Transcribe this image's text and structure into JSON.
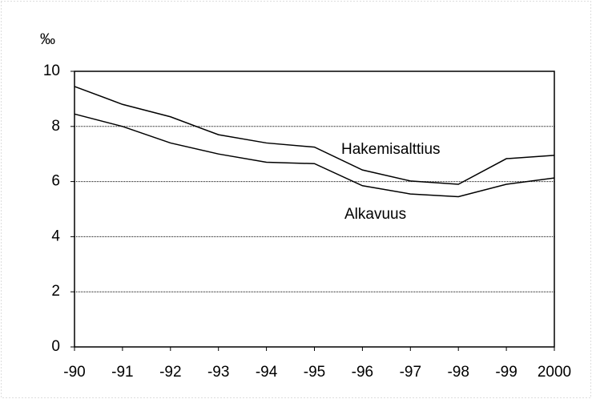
{
  "chart_data": {
    "type": "line",
    "y_label": "‰",
    "categories": [
      "-90",
      "-91",
      "-92",
      "-93",
      "-94",
      "-95",
      "-96",
      "-97",
      "-98",
      "-99",
      "2000"
    ],
    "series": [
      {
        "name": "Hakemisalttius",
        "color": "#000000",
        "values": [
          9.45,
          8.8,
          8.35,
          7.7,
          7.4,
          7.25,
          6.42,
          6.02,
          5.9,
          6.83,
          6.95
        ]
      },
      {
        "name": "Alkavuus",
        "color": "#000000",
        "values": [
          8.45,
          8.0,
          7.4,
          7.0,
          6.7,
          6.65,
          5.85,
          5.55,
          5.45,
          5.9,
          6.13
        ]
      }
    ],
    "ylim": [
      0,
      10
    ],
    "yticks": [
      0,
      2,
      4,
      6,
      8,
      10
    ],
    "grid": true
  }
}
